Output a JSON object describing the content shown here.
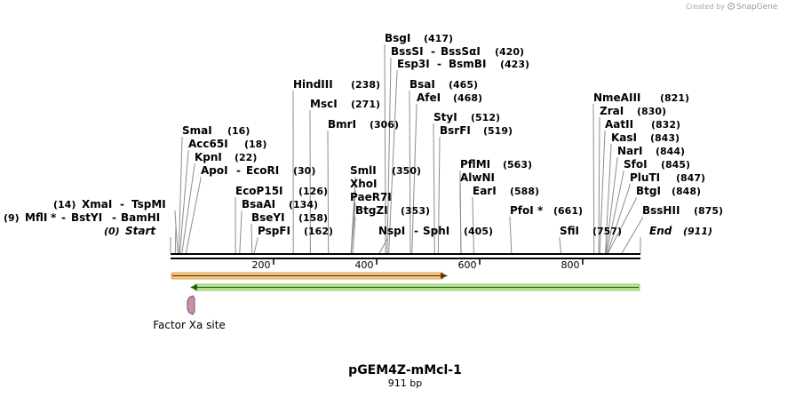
{
  "credit": {
    "prefix": "Created by",
    "brand": "SnapGene"
  },
  "sequence": {
    "name": "pGEM4Z-mMcl-1",
    "length_label": "911 bp",
    "length": 911
  },
  "ruler": {
    "ticks": [
      "200",
      "400",
      "600",
      "800"
    ]
  },
  "sites": [
    {
      "id": "bsgi",
      "label": "BsgI",
      "pos": "(417)",
      "bp": 417
    },
    {
      "id": "bsssi",
      "label": "BssSI",
      "sep": "-",
      "label2": "BssSαI",
      "pos": "(420)",
      "bp": 420
    },
    {
      "id": "esp3i",
      "label": "Esp3I",
      "sep": "-",
      "label2": "BsmBI",
      "pos": "(423)",
      "bp": 423
    },
    {
      "id": "hindiii",
      "label": "HindIII",
      "pos": "(238)",
      "bp": 238
    },
    {
      "id": "bsai",
      "label": "BsaI",
      "pos": "(465)",
      "bp": 465
    },
    {
      "id": "afei",
      "label": "AfeI",
      "pos": "(468)",
      "bp": 468
    },
    {
      "id": "msci",
      "label": "MscI",
      "pos": "(271)",
      "bp": 271
    },
    {
      "id": "bmri",
      "label": "BmrI",
      "pos": "(306)",
      "bp": 306
    },
    {
      "id": "styi",
      "label": "StyI",
      "pos": "(512)",
      "bp": 512
    },
    {
      "id": "bsrfi",
      "label": "BsrFI",
      "pos": "(519)",
      "bp": 519
    },
    {
      "id": "smai",
      "label": "SmaI",
      "pos": "(16)",
      "bp": 16
    },
    {
      "id": "acc65i",
      "label": "Acc65I",
      "pos": "(18)",
      "bp": 18
    },
    {
      "id": "kpni",
      "label": "KpnI",
      "pos": "(22)",
      "bp": 22
    },
    {
      "id": "apoi",
      "label": "ApoI",
      "sep": "-",
      "label2": "EcoRI",
      "pos": "(30)",
      "bp": 30
    },
    {
      "id": "smli",
      "label": "SmlI",
      "pos": "(350)",
      "bp": 350
    },
    {
      "id": "xhoi",
      "label": "XhoI",
      "bp": 350
    },
    {
      "id": "paer7i",
      "label": "PaeR7I",
      "bp": 350
    },
    {
      "id": "btgzi",
      "label": "BtgZI",
      "pos": "(353)",
      "bp": 353
    },
    {
      "id": "pflmi",
      "label": "PflMI",
      "pos": "(563)",
      "bp": 563
    },
    {
      "id": "alwni",
      "label": "AlwNI",
      "bp": 563
    },
    {
      "id": "eari",
      "label": "EarI",
      "pos": "(588)",
      "bp": 588
    },
    {
      "id": "ecop15i",
      "label": "EcoP15I",
      "pos": "(126)",
      "bp": 126
    },
    {
      "id": "bsaai",
      "label": "BsaAI",
      "pos": "(134)",
      "bp": 134
    },
    {
      "id": "bseyi",
      "label": "BseYI",
      "pos": "(158)",
      "bp": 158
    },
    {
      "id": "pspfi",
      "label": "PspFI",
      "pos": "(162)",
      "bp": 162
    },
    {
      "id": "pfoi",
      "label": "PfoI",
      "star": "*",
      "pos": "(661)",
      "bp": 661
    },
    {
      "id": "nspi",
      "label": "NspI",
      "sep": "-",
      "label2": "SphI",
      "pos": "(405)",
      "bp": 405
    },
    {
      "id": "sfii",
      "label": "SfiI",
      "pos": "(757)",
      "bp": 757
    },
    {
      "id": "xmai",
      "label": "XmaI",
      "sep": "-",
      "label2": "TspMI",
      "pos": "(14)",
      "bp": 14
    },
    {
      "id": "mfli",
      "label": "MflI",
      "star": "*",
      "sep": "-",
      "label2": "BstYI",
      "sep2": "-",
      "label3": "BamHI",
      "pos": "(9)",
      "bp": 9
    },
    {
      "id": "start",
      "label": "Start",
      "pos": "(0)",
      "bp": 0
    },
    {
      "id": "nmeaiii",
      "label": "NmeAIII",
      "pos": "(821)",
      "bp": 821
    },
    {
      "id": "zrai",
      "label": "ZraI",
      "pos": "(830)",
      "bp": 830
    },
    {
      "id": "aatii",
      "label": "AatII",
      "pos": "(832)",
      "bp": 832
    },
    {
      "id": "kasi",
      "label": "KasI",
      "pos": "(843)",
      "bp": 843
    },
    {
      "id": "nari",
      "label": "NarI",
      "pos": "(844)",
      "bp": 844
    },
    {
      "id": "sfoi",
      "label": "SfoI",
      "pos": "(845)",
      "bp": 845
    },
    {
      "id": "pluti",
      "label": "PluTI",
      "pos": "(847)",
      "bp": 847
    },
    {
      "id": "btgi",
      "label": "BtgI",
      "pos": "(848)",
      "bp": 848
    },
    {
      "id": "bsshii",
      "label": "BssHII",
      "pos": "(875)",
      "bp": 875
    },
    {
      "id": "end",
      "label": "End",
      "pos": "(911)",
      "bp": 911
    }
  ],
  "features": [
    {
      "id": "orange-feature",
      "color": "#f2a93b",
      "start_bp": 1,
      "end_bp": 540,
      "direction": "forward"
    },
    {
      "id": "green-feature",
      "color": "#7fcf52",
      "start_bp": 45,
      "end_bp": 911,
      "direction": "reverse"
    },
    {
      "id": "factor-xa",
      "label": "Factor Xa site",
      "color": "#c98fb0",
      "bp": 40
    }
  ],
  "colors": {
    "backbone": "#000000",
    "leader": "#8c8c8c"
  }
}
